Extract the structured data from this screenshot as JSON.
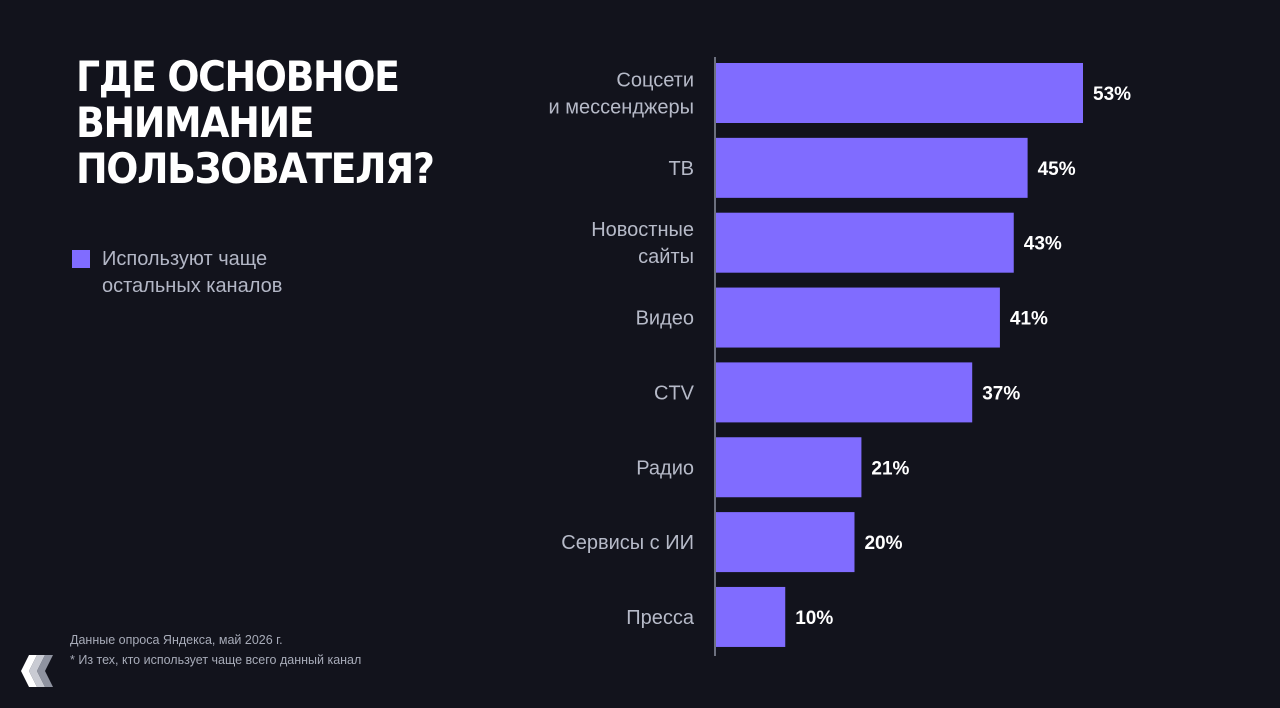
{
  "title_lines": [
    "ГДЕ ОСНОВНОЕ",
    "ВНИМАНИЕ",
    "ПОЛЬЗОВАТЕЛЯ?"
  ],
  "legend": {
    "label": "Используют чаще остальных каналов",
    "color": "#806cff"
  },
  "footnote": {
    "source": "Данные опроса Яндекса, май 2026 г.",
    "note": "* Из тех, кто использует чаще всего данный канал"
  },
  "chart_data": {
    "type": "bar",
    "orientation": "horizontal",
    "categories": [
      [
        "Соцсети",
        "и мессенджеры"
      ],
      [
        "ТВ"
      ],
      [
        "Новостные",
        "сайты"
      ],
      [
        "Видео"
      ],
      [
        "CTV"
      ],
      [
        "Радио"
      ],
      [
        "Сервисы с ИИ"
      ],
      [
        "Пресса"
      ]
    ],
    "series": [
      {
        "name": "Используют чаще остальных каналов",
        "values": [
          53,
          45,
          43,
          41,
          37,
          21,
          20,
          10
        ],
        "labels": [
          "53%",
          "45%",
          "43%",
          "41%",
          "37%",
          "21%",
          "20%",
          "10%"
        ],
        "color": "#806cff"
      }
    ],
    "xlim": [
      0,
      53
    ],
    "grid": false,
    "legend_position": "left"
  }
}
